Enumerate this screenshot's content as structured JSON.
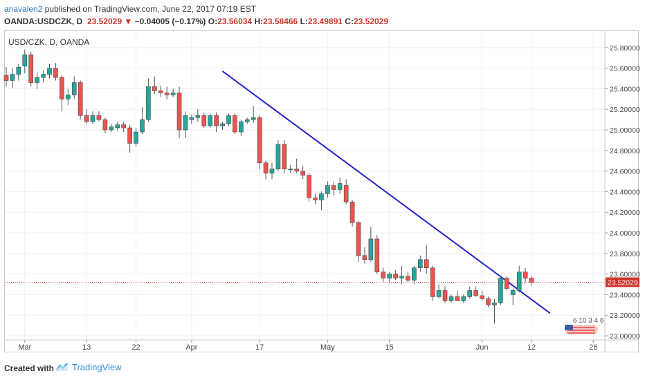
{
  "header": {
    "author": "anavalen2",
    "published_text": " published on TradingView.com, June 22, 2017 07:19 EST",
    "ticker_info": "OANDA:USDCZK, D",
    "last_price": "23.52029",
    "down_arrow": "▼",
    "change": "−0.04005 (−0.17%)",
    "open_label": "O:",
    "open": "23.56034",
    "high_label": "H:",
    "high": "23.58466",
    "low_label": "L:",
    "low": "23.49891",
    "close_label": "C:",
    "close": "23.52029"
  },
  "chart_label": "USD/CZK, D, OANDA",
  "footer": {
    "created_with": "Created with",
    "brand": "TradingView"
  },
  "colors": {
    "up": "#26a69a",
    "down": "#ef5350",
    "trendline": "#2222cc",
    "price_line": "#d0342c"
  },
  "chart_data": {
    "type": "candlestick",
    "ylim": [
      22.96,
      25.96
    ],
    "y_ticks": [
      23.0,
      23.2,
      23.4,
      23.6,
      23.8,
      24.0,
      24.2,
      24.4,
      24.6,
      24.8,
      25.0,
      25.2,
      25.4,
      25.6,
      25.8
    ],
    "y_tick_labels": [
      "23.00000",
      "23.20000",
      "23.40000",
      "23.60000",
      "23.80000",
      "24.00000",
      "24.20000",
      "24.40000",
      "24.60000",
      "24.80000",
      "25.00000",
      "25.20000",
      "25.40000",
      "25.60000",
      "25.80000"
    ],
    "x_ticks": [
      {
        "index": 3,
        "label": "Mar"
      },
      {
        "index": 13,
        "label": "13"
      },
      {
        "index": 21,
        "label": "22"
      },
      {
        "index": 30,
        "label": "Apr"
      },
      {
        "index": 41,
        "label": "17"
      },
      {
        "index": 52,
        "label": "May"
      },
      {
        "index": 62,
        "label": "15"
      },
      {
        "index": 77,
        "label": "Jun"
      },
      {
        "index": 85,
        "label": "12"
      },
      {
        "index": 95,
        "label": "26"
      }
    ],
    "last_price": 23.52029,
    "last_price_label": "23.52029",
    "trendline": {
      "from": [
        35,
        25.57
      ],
      "to": [
        88,
        23.22
      ]
    },
    "candles": [
      {
        "o": 25.53,
        "h": 25.61,
        "l": 25.42,
        "c": 25.48
      },
      {
        "o": 25.48,
        "h": 25.6,
        "l": 25.41,
        "c": 25.54
      },
      {
        "o": 25.54,
        "h": 25.64,
        "l": 25.48,
        "c": 25.61
      },
      {
        "o": 25.62,
        "h": 25.78,
        "l": 25.55,
        "c": 25.73
      },
      {
        "o": 25.73,
        "h": 25.76,
        "l": 25.42,
        "c": 25.46
      },
      {
        "o": 25.46,
        "h": 25.56,
        "l": 25.4,
        "c": 25.51
      },
      {
        "o": 25.51,
        "h": 25.58,
        "l": 25.46,
        "c": 25.54
      },
      {
        "o": 25.54,
        "h": 25.64,
        "l": 25.5,
        "c": 25.6
      },
      {
        "o": 25.6,
        "h": 25.65,
        "l": 25.48,
        "c": 25.51
      },
      {
        "o": 25.51,
        "h": 25.53,
        "l": 25.18,
        "c": 25.3
      },
      {
        "o": 25.3,
        "h": 25.4,
        "l": 25.24,
        "c": 25.34
      },
      {
        "o": 25.34,
        "h": 25.52,
        "l": 25.3,
        "c": 25.46
      },
      {
        "o": 25.46,
        "h": 25.48,
        "l": 25.1,
        "c": 25.14
      },
      {
        "o": 25.14,
        "h": 25.2,
        "l": 25.06,
        "c": 25.08
      },
      {
        "o": 25.08,
        "h": 25.18,
        "l": 25.06,
        "c": 25.14
      },
      {
        "o": 25.14,
        "h": 25.18,
        "l": 25.08,
        "c": 25.1
      },
      {
        "o": 25.1,
        "h": 25.12,
        "l": 24.97,
        "c": 25.0
      },
      {
        "o": 25.0,
        "h": 25.06,
        "l": 24.98,
        "c": 25.03
      },
      {
        "o": 25.02,
        "h": 25.08,
        "l": 24.99,
        "c": 25.05
      },
      {
        "o": 25.05,
        "h": 25.08,
        "l": 24.98,
        "c": 25.02
      },
      {
        "o": 25.02,
        "h": 25.05,
        "l": 24.78,
        "c": 24.87
      },
      {
        "o": 24.87,
        "h": 25.02,
        "l": 24.84,
        "c": 24.98
      },
      {
        "o": 24.98,
        "h": 25.22,
        "l": 24.96,
        "c": 25.1
      },
      {
        "o": 25.1,
        "h": 25.5,
        "l": 25.08,
        "c": 25.42
      },
      {
        "o": 25.42,
        "h": 25.52,
        "l": 25.35,
        "c": 25.38
      },
      {
        "o": 25.38,
        "h": 25.43,
        "l": 25.32,
        "c": 25.36
      },
      {
        "o": 25.36,
        "h": 25.42,
        "l": 25.3,
        "c": 25.34
      },
      {
        "o": 25.34,
        "h": 25.4,
        "l": 25.32,
        "c": 25.36
      },
      {
        "o": 25.36,
        "h": 25.42,
        "l": 24.92,
        "c": 25.0
      },
      {
        "o": 25.0,
        "h": 25.18,
        "l": 24.92,
        "c": 25.14
      },
      {
        "o": 25.1,
        "h": 25.15,
        "l": 25.06,
        "c": 25.12
      },
      {
        "o": 25.12,
        "h": 25.2,
        "l": 25.08,
        "c": 25.14
      },
      {
        "o": 25.14,
        "h": 25.17,
        "l": 25.02,
        "c": 25.04
      },
      {
        "o": 25.04,
        "h": 25.16,
        "l": 25.02,
        "c": 25.14
      },
      {
        "o": 25.14,
        "h": 25.17,
        "l": 24.98,
        "c": 25.04
      },
      {
        "o": 25.04,
        "h": 25.08,
        "l": 25.0,
        "c": 25.06
      },
      {
        "o": 25.06,
        "h": 25.16,
        "l": 25.04,
        "c": 25.14
      },
      {
        "o": 25.14,
        "h": 25.16,
        "l": 24.96,
        "c": 24.98
      },
      {
        "o": 24.98,
        "h": 25.1,
        "l": 24.94,
        "c": 25.08
      },
      {
        "o": 25.08,
        "h": 25.12,
        "l": 25.06,
        "c": 25.1
      },
      {
        "o": 25.1,
        "h": 25.23,
        "l": 25.07,
        "c": 25.12
      },
      {
        "o": 25.12,
        "h": 25.14,
        "l": 24.62,
        "c": 24.68
      },
      {
        "o": 24.68,
        "h": 24.7,
        "l": 24.52,
        "c": 24.58
      },
      {
        "o": 24.58,
        "h": 24.68,
        "l": 24.52,
        "c": 24.62
      },
      {
        "o": 24.62,
        "h": 24.9,
        "l": 24.6,
        "c": 24.86
      },
      {
        "o": 24.86,
        "h": 24.9,
        "l": 24.58,
        "c": 24.62
      },
      {
        "o": 24.62,
        "h": 24.66,
        "l": 24.58,
        "c": 24.62
      },
      {
        "o": 24.62,
        "h": 24.72,
        "l": 24.58,
        "c": 24.6
      },
      {
        "o": 24.6,
        "h": 24.65,
        "l": 24.52,
        "c": 24.56
      },
      {
        "o": 24.56,
        "h": 24.58,
        "l": 24.3,
        "c": 24.34
      },
      {
        "o": 24.34,
        "h": 24.38,
        "l": 24.28,
        "c": 24.32
      },
      {
        "o": 24.32,
        "h": 24.4,
        "l": 24.22,
        "c": 24.38
      },
      {
        "o": 24.38,
        "h": 24.5,
        "l": 24.34,
        "c": 24.46
      },
      {
        "o": 24.46,
        "h": 24.5,
        "l": 24.36,
        "c": 24.42
      },
      {
        "o": 24.42,
        "h": 24.54,
        "l": 24.38,
        "c": 24.48
      },
      {
        "o": 24.46,
        "h": 24.52,
        "l": 24.28,
        "c": 24.3
      },
      {
        "o": 24.3,
        "h": 24.32,
        "l": 24.06,
        "c": 24.1
      },
      {
        "o": 24.1,
        "h": 24.12,
        "l": 23.72,
        "c": 23.78
      },
      {
        "o": 23.78,
        "h": 23.86,
        "l": 23.7,
        "c": 23.74
      },
      {
        "o": 23.74,
        "h": 24.06,
        "l": 23.72,
        "c": 23.94
      },
      {
        "o": 23.94,
        "h": 23.98,
        "l": 23.6,
        "c": 23.62
      },
      {
        "o": 23.62,
        "h": 23.66,
        "l": 23.52,
        "c": 23.56
      },
      {
        "o": 23.56,
        "h": 23.62,
        "l": 23.52,
        "c": 23.6
      },
      {
        "o": 23.6,
        "h": 23.64,
        "l": 23.54,
        "c": 23.56
      },
      {
        "o": 23.56,
        "h": 23.68,
        "l": 23.5,
        "c": 23.58
      },
      {
        "o": 23.58,
        "h": 23.62,
        "l": 23.52,
        "c": 23.54
      },
      {
        "o": 23.54,
        "h": 23.68,
        "l": 23.5,
        "c": 23.66
      },
      {
        "o": 23.66,
        "h": 23.78,
        "l": 23.62,
        "c": 23.74
      },
      {
        "o": 23.74,
        "h": 23.88,
        "l": 23.6,
        "c": 23.66
      },
      {
        "o": 23.66,
        "h": 23.68,
        "l": 23.34,
        "c": 23.38
      },
      {
        "o": 23.38,
        "h": 23.5,
        "l": 23.36,
        "c": 23.44
      },
      {
        "o": 23.44,
        "h": 23.48,
        "l": 23.32,
        "c": 23.34
      },
      {
        "o": 23.34,
        "h": 23.4,
        "l": 23.32,
        "c": 23.38
      },
      {
        "o": 23.38,
        "h": 23.44,
        "l": 23.34,
        "c": 23.34
      },
      {
        "o": 23.34,
        "h": 23.4,
        "l": 23.32,
        "c": 23.38
      },
      {
        "o": 23.38,
        "h": 23.48,
        "l": 23.36,
        "c": 23.44
      },
      {
        "o": 23.44,
        "h": 23.48,
        "l": 23.38,
        "c": 23.39
      },
      {
        "o": 23.39,
        "h": 23.44,
        "l": 23.34,
        "c": 23.36
      },
      {
        "o": 23.36,
        "h": 23.38,
        "l": 23.28,
        "c": 23.3
      },
      {
        "o": 23.3,
        "h": 23.36,
        "l": 23.12,
        "c": 23.32
      },
      {
        "o": 23.32,
        "h": 23.58,
        "l": 23.3,
        "c": 23.56
      },
      {
        "o": 23.56,
        "h": 23.58,
        "l": 23.44,
        "c": 23.46
      },
      {
        "o": 23.4,
        "h": 23.46,
        "l": 23.3,
        "c": 23.44
      },
      {
        "o": 23.44,
        "h": 23.68,
        "l": 23.42,
        "c": 23.62
      },
      {
        "o": 23.62,
        "h": 23.66,
        "l": 23.52,
        "c": 23.56
      },
      {
        "o": 23.56,
        "h": 23.58,
        "l": 23.49,
        "c": 23.52
      }
    ]
  }
}
